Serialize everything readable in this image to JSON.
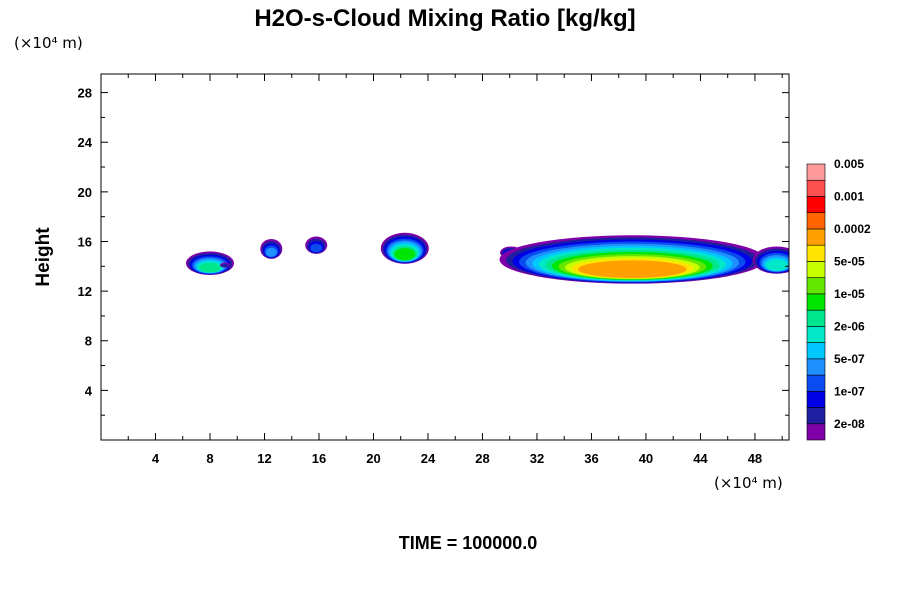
{
  "chart_data": {
    "type": "contour",
    "title": "H2O-s-Cloud Mixing Ratio [kg/kg]",
    "ylabel": "Height",
    "x_unit": "(×10⁴ m)",
    "y_unit": "(×10⁴ m)",
    "xlim": [
      0,
      50.5
    ],
    "ylim": [
      0,
      29.5
    ],
    "x_ticks": [
      4,
      8,
      12,
      16,
      20,
      24,
      28,
      32,
      36,
      40,
      44,
      48
    ],
    "y_ticks": [
      4,
      8,
      12,
      16,
      20,
      24,
      28
    ],
    "x_tick_labels": [
      "4",
      "8",
      "12",
      "16",
      "20",
      "24",
      "28",
      "32",
      "36",
      "40",
      "44",
      "48"
    ],
    "y_tick_labels": [
      "4",
      "8",
      "12",
      "16",
      "20",
      "24",
      "28"
    ],
    "footer": "TIME = 100000.0",
    "colorbar": {
      "colors": [
        "#7f00a8",
        "#1e1ea0",
        "#0000e6",
        "#0a4cf0",
        "#1e90ff",
        "#00c8ff",
        "#00e8c8",
        "#00e68c",
        "#00e600",
        "#64e600",
        "#c8ff00",
        "#ffe600",
        "#ffa000",
        "#ff6400",
        "#ff0000",
        "#ff5050",
        "#ff9a9a"
      ],
      "labels": [
        "2e-08",
        "1e-07",
        "5e-07",
        "2e-06",
        "1e-05",
        "5e-05",
        "0.0002",
        "0.001",
        "0.005"
      ]
    },
    "blobs": [
      {
        "x": 8.0,
        "top": 15.2,
        "bottom": 13.3,
        "peak": 7
      },
      {
        "x": 9.1,
        "top": 14.3,
        "bottom": 13.9,
        "peak": 1
      },
      {
        "x": 12.5,
        "top": 16.2,
        "bottom": 14.6,
        "peak": 4
      },
      {
        "x": 15.8,
        "top": 16.4,
        "bottom": 15.0,
        "peak": 3
      },
      {
        "x": 22.3,
        "top": 16.7,
        "bottom": 14.2,
        "peak": 8
      },
      {
        "x": 30.1,
        "top": 15.6,
        "bottom": 14.6,
        "peak": 4
      },
      {
        "x": 39.0,
        "top": 16.5,
        "bottom": 12.6,
        "peak": 12
      },
      {
        "x": 49.6,
        "top": 15.6,
        "bottom": 13.4,
        "peak": 6
      }
    ]
  }
}
